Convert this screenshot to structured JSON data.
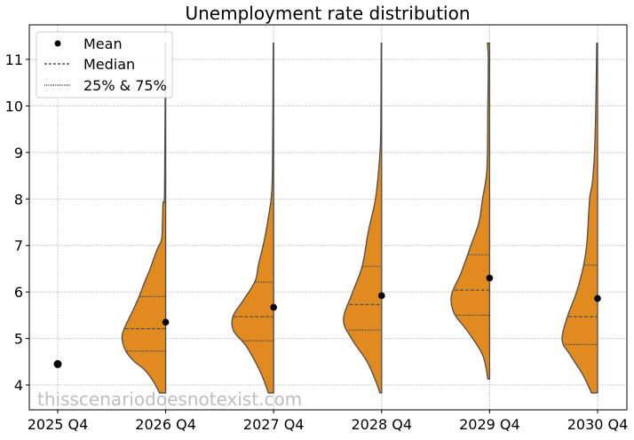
{
  "chart_data": {
    "type": "violin",
    "title": "Unemployment rate distribution",
    "xlabel": "",
    "ylabel": "",
    "categories": [
      "2025 Q4",
      "2026 Q4",
      "2027 Q4",
      "2028 Q4",
      "2029 Q4",
      "2030 Q4"
    ],
    "ylim": [
      3.45,
      11.75
    ],
    "yticks": [
      4,
      5,
      6,
      7,
      8,
      9,
      10,
      11
    ],
    "grid": true,
    "legend": {
      "placement": "top-left",
      "entries": [
        {
          "label": "Mean",
          "marker": "dot"
        },
        {
          "label": "Median",
          "marker": "dashed-line"
        },
        {
          "label": "25% & 75%",
          "marker": "dotted-line"
        }
      ]
    },
    "colors": {
      "fill": "#e08a1f",
      "edge": "#4d4d4d",
      "quartile_line": "#3d4b5c",
      "mean": "#000000"
    },
    "series": [
      {
        "category": "2025 Q4",
        "mean": 4.45
      },
      {
        "category": "2026 Q4",
        "mean": 5.35,
        "q25": 4.73,
        "median": 5.21,
        "q75": 5.9,
        "density": [
          [
            11.35,
            0.01
          ],
          [
            10.5,
            0.01
          ],
          [
            9.0,
            0.02
          ],
          [
            8.0,
            0.03
          ],
          [
            7.9,
            0.06
          ],
          [
            7.3,
            0.08
          ],
          [
            7.1,
            0.1
          ],
          [
            6.9,
            0.2
          ],
          [
            6.5,
            0.35
          ],
          [
            6.2,
            0.48
          ],
          [
            5.9,
            0.6
          ],
          [
            5.6,
            0.74
          ],
          [
            5.2,
            0.94
          ],
          [
            4.97,
            0.98
          ],
          [
            4.7,
            0.88
          ],
          [
            4.5,
            0.7
          ],
          [
            4.33,
            0.48
          ],
          [
            4.08,
            0.28
          ],
          [
            3.83,
            0.14
          ]
        ]
      },
      {
        "category": "2027 Q4",
        "mean": 5.67,
        "q25": 4.95,
        "median": 5.47,
        "q75": 6.21,
        "density": [
          [
            11.35,
            0.01
          ],
          [
            9.5,
            0.02
          ],
          [
            8.2,
            0.04
          ],
          [
            7.6,
            0.12
          ],
          [
            7.07,
            0.22
          ],
          [
            6.6,
            0.34
          ],
          [
            6.23,
            0.42
          ],
          [
            5.8,
            0.7
          ],
          [
            5.47,
            0.92
          ],
          [
            5.16,
            0.9
          ],
          [
            4.84,
            0.62
          ],
          [
            4.4,
            0.36
          ],
          [
            4.1,
            0.22
          ],
          [
            3.83,
            0.12
          ]
        ]
      },
      {
        "category": "2028 Q4",
        "mean": 5.92,
        "q25": 5.18,
        "median": 5.73,
        "q75": 6.55,
        "density": [
          [
            11.35,
            0.01
          ],
          [
            9.5,
            0.02
          ],
          [
            8.83,
            0.05
          ],
          [
            8.0,
            0.14
          ],
          [
            7.3,
            0.3
          ],
          [
            6.55,
            0.44
          ],
          [
            5.98,
            0.66
          ],
          [
            5.4,
            0.86
          ],
          [
            4.97,
            0.66
          ],
          [
            4.52,
            0.34
          ],
          [
            4.1,
            0.14
          ],
          [
            3.83,
            0.04
          ]
        ]
      },
      {
        "category": "2029 Q4",
        "mean": 6.3,
        "q25": 5.5,
        "median": 6.04,
        "q75": 6.8,
        "density": [
          [
            11.35,
            0.05
          ],
          [
            11.0,
            0.03
          ],
          [
            10.0,
            0.04
          ],
          [
            8.65,
            0.06
          ],
          [
            8.0,
            0.16
          ],
          [
            7.5,
            0.24
          ],
          [
            7.06,
            0.4
          ],
          [
            6.42,
            0.64
          ],
          [
            5.93,
            0.86
          ],
          [
            5.54,
            0.8
          ],
          [
            5.16,
            0.5
          ],
          [
            4.65,
            0.16
          ],
          [
            4.13,
            0.04
          ]
        ]
      },
      {
        "category": "2030 Q4",
        "mean": 5.86,
        "q25": 4.87,
        "median": 5.47,
        "q75": 6.58,
        "density": [
          [
            11.35,
            0.02
          ],
          [
            10.0,
            0.04
          ],
          [
            9.0,
            0.07
          ],
          [
            8.33,
            0.12
          ],
          [
            8.0,
            0.18
          ],
          [
            7.07,
            0.24
          ],
          [
            6.55,
            0.32
          ],
          [
            5.98,
            0.48
          ],
          [
            5.47,
            0.68
          ],
          [
            4.97,
            0.8
          ],
          [
            4.65,
            0.62
          ],
          [
            4.2,
            0.32
          ],
          [
            3.83,
            0.14
          ]
        ]
      }
    ]
  },
  "watermark": "thisscenariodoesnotexist.com"
}
